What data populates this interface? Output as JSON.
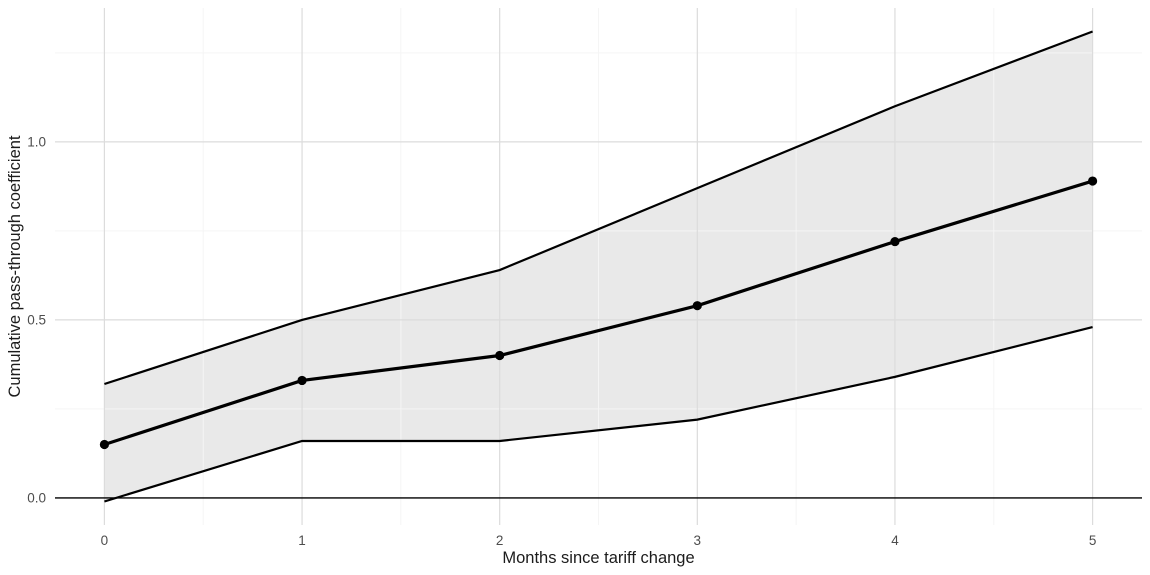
{
  "chart_data": {
    "type": "line",
    "title": "",
    "xlabel": "Months since tariff change",
    "ylabel": "Cumulative pass-through coefficient",
    "x": [
      0,
      1,
      2,
      3,
      4,
      5
    ],
    "series": [
      {
        "name": "estimate",
        "role": "point-estimate",
        "values": [
          0.15,
          0.33,
          0.4,
          0.54,
          0.72,
          0.89
        ]
      },
      {
        "name": "ci_upper",
        "role": "confidence-band-upper",
        "values": [
          0.32,
          0.5,
          0.64,
          0.87,
          1.1,
          1.31
        ]
      },
      {
        "name": "ci_lower",
        "role": "confidence-band-lower",
        "values": [
          -0.01,
          0.16,
          0.16,
          0.22,
          0.34,
          0.48
        ]
      }
    ],
    "band_between": [
      "ci_lower",
      "ci_upper"
    ],
    "zero_line": 0.0,
    "xticks": {
      "values": [
        0,
        1,
        2,
        3,
        4,
        5
      ],
      "labels": [
        "0",
        "1",
        "2",
        "3",
        "4",
        "5"
      ]
    },
    "yticks": {
      "values": [
        0.0,
        0.5,
        1.0
      ],
      "labels": [
        "0.0",
        "0.5",
        "1.0"
      ]
    },
    "minor_xticks": [
      0.5,
      1.5,
      2.5,
      3.5,
      4.5
    ],
    "minor_yticks": [
      0.25,
      0.75,
      1.25
    ],
    "xlim": [
      -0.25,
      5.25
    ],
    "ylim": [
      -0.076,
      1.376
    ],
    "grid": "major+minor",
    "legend": false,
    "points_on_estimate": true
  },
  "colors": {
    "background": "#ffffff",
    "line": "#000000",
    "point": "#000000",
    "zero_line": "#000000",
    "band_fill": "#e9e9e9",
    "grid_major": "#dcdcdc",
    "grid_minor": "#f5f5f5",
    "tick_label": "#4d4d4d",
    "axis_title": "#1c1c1c"
  }
}
